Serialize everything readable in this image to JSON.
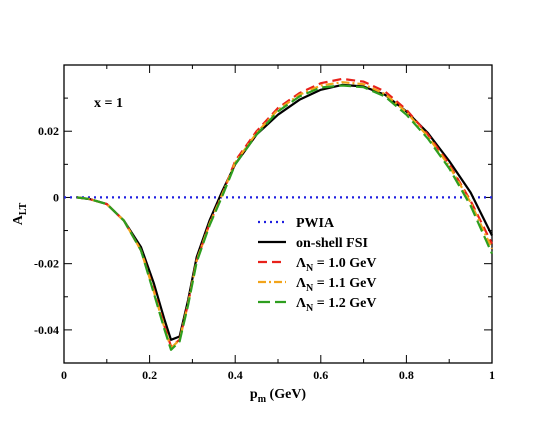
{
  "chart_data": {
    "type": "line",
    "xlabel": {
      "base": "p",
      "sub": "m",
      "unit": " (GeV)"
    },
    "ylabel": {
      "base": "A",
      "sub": "LT"
    },
    "annotation": "x = 1",
    "xlim": [
      0,
      1
    ],
    "ylim": [
      -0.05,
      0.04
    ],
    "xticks": [
      {
        "value": 0,
        "label": "0"
      },
      {
        "value": 0.2,
        "label": "0.2"
      },
      {
        "value": 0.4,
        "label": "0.4"
      },
      {
        "value": 0.6,
        "label": "0.6"
      },
      {
        "value": 0.8,
        "label": "0.8"
      },
      {
        "value": 1,
        "label": "1"
      }
    ],
    "yticks": [
      {
        "value": -0.04,
        "label": "-0.04"
      },
      {
        "value": -0.02,
        "label": "-0.02"
      },
      {
        "value": 0,
        "label": "0"
      },
      {
        "value": 0.02,
        "label": "0.02"
      }
    ],
    "grid": false,
    "legend_position": "center-right",
    "series": [
      {
        "name": "PWIA",
        "label_parts": {
          "base": "PWIA",
          "sub": "",
          "rest": ""
        },
        "color": "#1f1fe0",
        "dash": "2,4",
        "x": [
          0,
          0.25,
          0.5,
          0.75,
          1.0
        ],
        "y": [
          0,
          0,
          0,
          0,
          0
        ]
      },
      {
        "name": "on-shell FSI",
        "label_parts": {
          "base": "on-shell FSI",
          "sub": "",
          "rest": ""
        },
        "color": "#000000",
        "dash": "",
        "x": [
          0.03,
          0.06,
          0.1,
          0.14,
          0.18,
          0.21,
          0.235,
          0.25,
          0.27,
          0.29,
          0.31,
          0.34,
          0.37,
          0.4,
          0.45,
          0.5,
          0.55,
          0.6,
          0.65,
          0.7,
          0.75,
          0.8,
          0.85,
          0.9,
          0.95,
          1.0
        ],
        "y": [
          0,
          -0.0005,
          -0.002,
          -0.007,
          -0.015,
          -0.026,
          -0.037,
          -0.043,
          -0.042,
          -0.031,
          -0.018,
          -0.007,
          0.002,
          0.01,
          0.019,
          0.025,
          0.0295,
          0.0325,
          0.034,
          0.0335,
          0.031,
          0.026,
          0.0195,
          0.011,
          0.0015,
          -0.0115
        ]
      },
      {
        "name": "Λ_N = 1.0 GeV",
        "label_parts": {
          "base": "Λ",
          "sub": "N",
          "rest": " = 1.0 GeV"
        },
        "color": "#e8211a",
        "dash": "9,5",
        "x": [
          0.03,
          0.06,
          0.1,
          0.14,
          0.18,
          0.21,
          0.235,
          0.25,
          0.27,
          0.29,
          0.31,
          0.34,
          0.37,
          0.4,
          0.45,
          0.5,
          0.55,
          0.6,
          0.65,
          0.7,
          0.75,
          0.8,
          0.85,
          0.9,
          0.95,
          1.0
        ],
        "y": [
          0,
          -0.0005,
          -0.002,
          -0.007,
          -0.016,
          -0.028,
          -0.039,
          -0.045,
          -0.043,
          -0.032,
          -0.019,
          -0.008,
          0.001,
          0.011,
          0.02,
          0.027,
          0.0315,
          0.0345,
          0.0358,
          0.035,
          0.032,
          0.0265,
          0.019,
          0.01,
          -0.001,
          -0.014
        ]
      },
      {
        "name": "Λ_N = 1.1 GeV",
        "label_parts": {
          "base": "Λ",
          "sub": "N",
          "rest": " = 1.1 GeV"
        },
        "color": "#f2a41a",
        "dash": "8,3,2,3",
        "x": [
          0.03,
          0.06,
          0.1,
          0.14,
          0.18,
          0.21,
          0.235,
          0.25,
          0.27,
          0.29,
          0.31,
          0.34,
          0.37,
          0.4,
          0.45,
          0.5,
          0.55,
          0.6,
          0.65,
          0.7,
          0.75,
          0.8,
          0.85,
          0.9,
          0.95,
          1.0
        ],
        "y": [
          0,
          -0.0005,
          -0.002,
          -0.007,
          -0.016,
          -0.0285,
          -0.0395,
          -0.0455,
          -0.043,
          -0.032,
          -0.019,
          -0.008,
          0.001,
          0.0105,
          0.0195,
          0.0265,
          0.031,
          0.0338,
          0.0348,
          0.0342,
          0.0312,
          0.0258,
          0.0184,
          0.0095,
          -0.0015,
          -0.0155
        ]
      },
      {
        "name": "Λ_N = 1.2 GeV",
        "label_parts": {
          "base": "Λ",
          "sub": "N",
          "rest": " = 1.2 GeV"
        },
        "color": "#2e9e1f",
        "dash": "12,5",
        "x": [
          0.03,
          0.06,
          0.1,
          0.14,
          0.18,
          0.21,
          0.235,
          0.25,
          0.27,
          0.29,
          0.31,
          0.34,
          0.37,
          0.4,
          0.45,
          0.5,
          0.55,
          0.6,
          0.65,
          0.7,
          0.75,
          0.8,
          0.85,
          0.9,
          0.95,
          1.0
        ],
        "y": [
          0,
          -0.0005,
          -0.002,
          -0.007,
          -0.016,
          -0.029,
          -0.04,
          -0.046,
          -0.0435,
          -0.0325,
          -0.0195,
          -0.0085,
          0.0005,
          0.01,
          0.019,
          0.026,
          0.0305,
          0.0332,
          0.0338,
          0.0333,
          0.0305,
          0.025,
          0.0178,
          0.0088,
          -0.0025,
          -0.017
        ]
      }
    ]
  }
}
